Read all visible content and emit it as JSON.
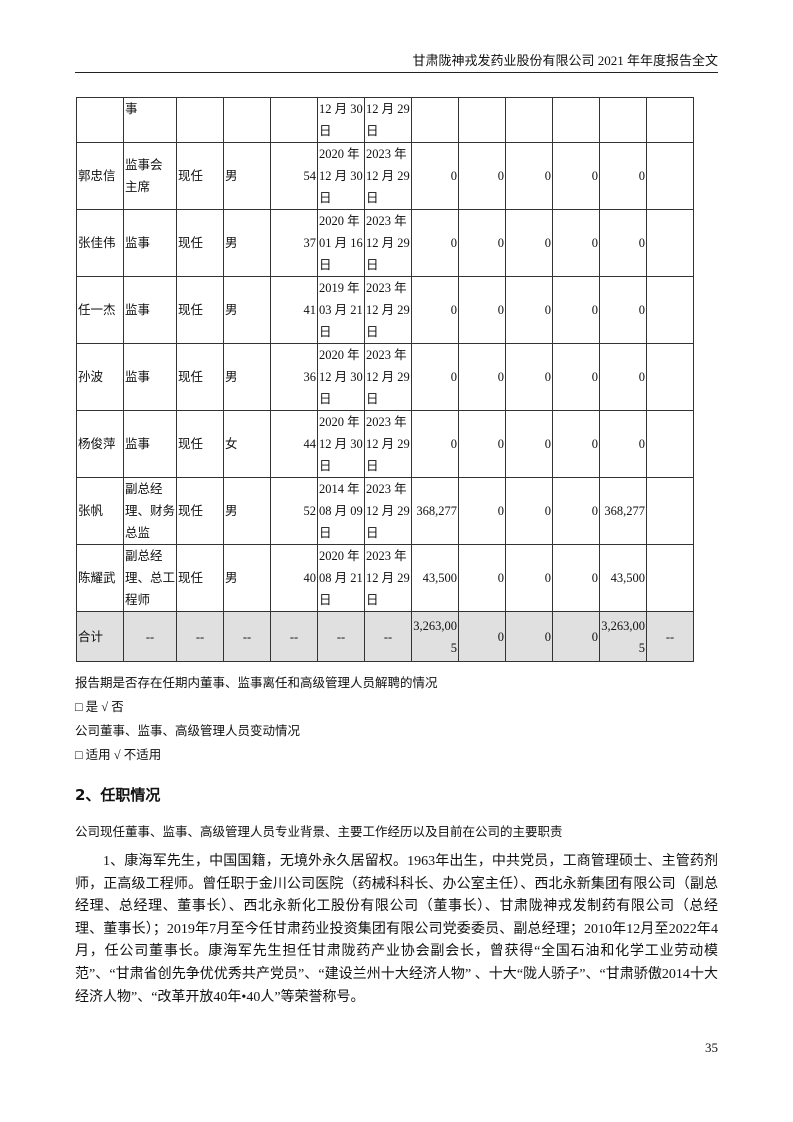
{
  "header": {
    "title": "甘肃陇神戎发药业股份有限公司 2021 年年度报告全文"
  },
  "table": {
    "first_row": {
      "position": "事",
      "start": [
        "12 月 30",
        "日"
      ],
      "end": [
        "12 月 29",
        "日"
      ]
    },
    "rows": [
      {
        "name": "郭忠信",
        "position": [
          "监事会",
          "主席"
        ],
        "status": "现任",
        "gender": "男",
        "age": "54",
        "start": [
          "2020 年",
          "12 月 30",
          "日"
        ],
        "end": [
          "2023 年",
          "12 月 29",
          "日"
        ],
        "v": [
          "0",
          "0",
          "0",
          "0",
          "0"
        ],
        "last": ""
      },
      {
        "name": "张佳伟",
        "position": [
          "监事"
        ],
        "status": "现任",
        "gender": "男",
        "age": "37",
        "start": [
          "2020 年",
          "01 月 16",
          "日"
        ],
        "end": [
          "2023 年",
          "12 月 29",
          "日"
        ],
        "v": [
          "0",
          "0",
          "0",
          "0",
          "0"
        ],
        "last": ""
      },
      {
        "name": "任一杰",
        "position": [
          "监事"
        ],
        "status": "现任",
        "gender": "男",
        "age": "41",
        "start": [
          "2019 年",
          "03 月 21",
          "日"
        ],
        "end": [
          "2023 年",
          "12 月 29",
          "日"
        ],
        "v": [
          "0",
          "0",
          "0",
          "0",
          "0"
        ],
        "last": ""
      },
      {
        "name": "孙波",
        "position": [
          "监事"
        ],
        "status": "现任",
        "gender": "男",
        "age": "36",
        "start": [
          "2020 年",
          "12 月 30",
          "日"
        ],
        "end": [
          "2023 年",
          "12 月 29",
          "日"
        ],
        "v": [
          "0",
          "0",
          "0",
          "0",
          "0"
        ],
        "last": ""
      },
      {
        "name": "杨俊萍",
        "position": [
          "监事"
        ],
        "status": "现任",
        "gender": "女",
        "age": "44",
        "start": [
          "2020 年",
          "12 月 30",
          "日"
        ],
        "end": [
          "2023 年",
          "12 月 29",
          "日"
        ],
        "v": [
          "0",
          "0",
          "0",
          "0",
          "0"
        ],
        "last": ""
      },
      {
        "name": "张帆",
        "position": [
          "副总经",
          "理、财务",
          "总监"
        ],
        "status": "现任",
        "gender": "男",
        "age": "52",
        "start": [
          "2014 年",
          "08 月 09",
          "日"
        ],
        "end": [
          "2023 年",
          "12 月 29",
          "日"
        ],
        "v": [
          "368,277",
          "0",
          "0",
          "0",
          "368,277"
        ],
        "last": ""
      },
      {
        "name": "陈耀武",
        "position": [
          "副总经",
          "理、总工",
          "程师"
        ],
        "status": "现任",
        "gender": "男",
        "age": "40",
        "start": [
          "2020 年",
          "08 月 21",
          "日"
        ],
        "end": [
          "2023 年",
          "12 月 29",
          "日"
        ],
        "v": [
          "43,500",
          "0",
          "0",
          "0",
          "43,500"
        ],
        "last": ""
      }
    ],
    "total": {
      "label": "合计",
      "dashes": [
        "--",
        "--",
        "--",
        "--",
        "--",
        "--"
      ],
      "v": [
        "3,263,00\n5",
        "0",
        "0",
        "0",
        "3,263,00\n5"
      ],
      "last": "--"
    }
  },
  "notes": {
    "q1": "报告期是否存在任期内董事、监事离任和高级管理人员解聘的情况",
    "a1": "□ 是 √ 否",
    "q2": "公司董事、监事、高级管理人员变动情况",
    "a2": "□ 适用 √ 不适用"
  },
  "section": {
    "title": "2、任职情况",
    "subtitle": "公司现任董事、监事、高级管理人员专业背景、主要工作经历以及目前在公司的主要职责",
    "paragraph": "1、康海军先生，中国国籍，无境外永久居留权。1963年出生，中共党员，工商管理硕士、主管药剂师，正高级工程师。曾任职于金川公司医院（药械科科长、办公室主任）、西北永新集团有限公司（副总经理、总经理、董事长）、西北永新化工股份有限公司（董事长）、甘肃陇神戎发制药有限公司（总经理、董事长）；2019年7月至今任甘肃药业投资集团有限公司党委委员、副总经理；2010年12月至2022年4月，任公司董事长。康海军先生担任甘肃陇药产业协会副会长，曾获得“全国石油和化学工业劳动模范”、“甘肃省创先争优优秀共产党员”、“建设兰州十大经济人物” 、十大“陇人骄子”、“甘肃骄傲2014十大经济人物”、“改革开放40年•40人”等荣誉称号。"
  },
  "page_number": "35"
}
